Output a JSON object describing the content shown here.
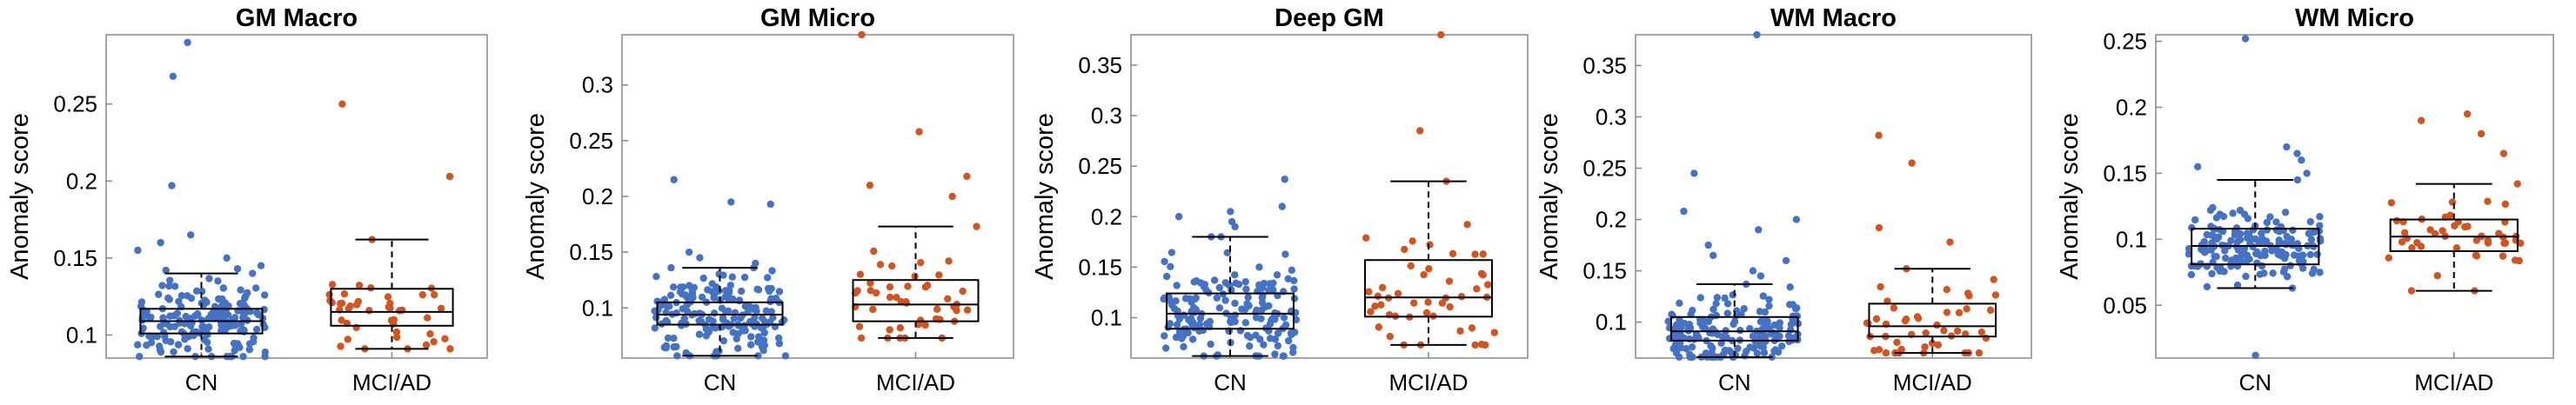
{
  "colors": {
    "cn": "#4472C4",
    "mci": "#D2541E",
    "axis": "#888888",
    "box": "#000000"
  },
  "chart_data": [
    {
      "type": "box",
      "title": "GM Macro",
      "ylabel": "Anomaly score",
      "categories": [
        "CN",
        "MCI/AD"
      ],
      "ylim": [
        0.085,
        0.295
      ],
      "yticks": [
        0.1,
        0.15,
        0.2,
        0.25
      ],
      "ytick_labels": [
        "0.1",
        "0.15",
        "0.2",
        "0.25"
      ],
      "boxes": [
        {
          "q1": 0.101,
          "median": 0.109,
          "q3": 0.117,
          "whisker_low": 0.086,
          "whisker_high": 0.14,
          "n": 170,
          "spread": 0.016,
          "outliers": [
            0.29,
            0.268,
            0.197,
            0.165,
            0.16,
            0.155,
            0.15,
            0.145,
            0.143,
            0.142
          ]
        },
        {
          "q1": 0.106,
          "median": 0.115,
          "q3": 0.13,
          "whisker_low": 0.091,
          "whisker_high": 0.162,
          "n": 42,
          "spread": 0.017,
          "outliers": [
            0.25,
            0.203
          ]
        }
      ]
    },
    {
      "type": "box",
      "title": "GM Micro",
      "ylabel": "Anomaly score",
      "categories": [
        "CN",
        "MCI/AD"
      ],
      "ylim": [
        0.055,
        0.345
      ],
      "yticks": [
        0.1,
        0.15,
        0.2,
        0.25,
        0.3
      ],
      "ytick_labels": [
        "0.1",
        "0.15",
        "0.2",
        "0.25",
        "0.3"
      ],
      "boxes": [
        {
          "q1": 0.085,
          "median": 0.094,
          "q3": 0.105,
          "whisker_low": 0.057,
          "whisker_high": 0.136,
          "n": 170,
          "spread": 0.022,
          "outliers": [
            0.215,
            0.195,
            0.193,
            0.15,
            0.145,
            0.14
          ]
        },
        {
          "q1": 0.088,
          "median": 0.103,
          "q3": 0.125,
          "whisker_low": 0.073,
          "whisker_high": 0.173,
          "n": 45,
          "spread": 0.028,
          "outliers": [
            0.345,
            0.258,
            0.218,
            0.21,
            0.2
          ]
        }
      ]
    },
    {
      "type": "box",
      "title": "Deep GM",
      "ylabel": "Anomaly score",
      "categories": [
        "CN",
        "MCI/AD"
      ],
      "ylim": [
        0.06,
        0.38
      ],
      "yticks": [
        0.1,
        0.15,
        0.2,
        0.25,
        0.3,
        0.35
      ],
      "ytick_labels": [
        "0.1",
        "0.15",
        "0.2",
        "0.25",
        "0.3",
        "0.35"
      ],
      "boxes": [
        {
          "q1": 0.089,
          "median": 0.104,
          "q3": 0.124,
          "whisker_low": 0.062,
          "whisker_high": 0.18,
          "n": 170,
          "spread": 0.03,
          "outliers": [
            0.237,
            0.21,
            0.205,
            0.2,
            0.195,
            0.19
          ]
        },
        {
          "q1": 0.101,
          "median": 0.12,
          "q3": 0.157,
          "whisker_low": 0.073,
          "whisker_high": 0.235,
          "n": 45,
          "spread": 0.038,
          "outliers": [
            0.38,
            0.285
          ]
        }
      ]
    },
    {
      "type": "box",
      "title": "WM Macro",
      "ylabel": "Anomaly score",
      "categories": [
        "CN",
        "MCI/AD"
      ],
      "ylim": [
        0.065,
        0.38
      ],
      "yticks": [
        0.1,
        0.15,
        0.2,
        0.25,
        0.3,
        0.35
      ],
      "ytick_labels": [
        "0.1",
        "0.15",
        "0.2",
        "0.25",
        "0.3",
        "0.35"
      ],
      "boxes": [
        {
          "q1": 0.082,
          "median": 0.091,
          "q3": 0.105,
          "whisker_low": 0.066,
          "whisker_high": 0.137,
          "n": 170,
          "spread": 0.022,
          "outliers": [
            0.38,
            0.245,
            0.208,
            0.2,
            0.19,
            0.175,
            0.165,
            0.16,
            0.15,
            0.145
          ]
        },
        {
          "q1": 0.086,
          "median": 0.096,
          "q3": 0.118,
          "whisker_low": 0.07,
          "whisker_high": 0.152,
          "n": 45,
          "spread": 0.025,
          "outliers": [
            0.282,
            0.255,
            0.192,
            0.178
          ]
        }
      ]
    },
    {
      "type": "box",
      "title": "WM Micro",
      "ylabel": "Anomaly score",
      "categories": [
        "CN",
        "MCI/AD"
      ],
      "ylim": [
        0.01,
        0.255
      ],
      "yticks": [
        0.05,
        0.1,
        0.15,
        0.2,
        0.25
      ],
      "ytick_labels": [
        "0.05",
        "0.1",
        "0.15",
        "0.2",
        "0.25"
      ],
      "boxes": [
        {
          "q1": 0.081,
          "median": 0.095,
          "q3": 0.108,
          "whisker_low": 0.063,
          "whisker_high": 0.145,
          "n": 170,
          "spread": 0.018,
          "outliers": [
            0.252,
            0.012,
            0.17,
            0.165,
            0.16,
            0.155,
            0.15
          ]
        },
        {
          "q1": 0.091,
          "median": 0.102,
          "q3": 0.115,
          "whisker_low": 0.061,
          "whisker_high": 0.142,
          "n": 45,
          "spread": 0.019,
          "outliers": [
            0.195,
            0.19,
            0.18,
            0.165
          ]
        }
      ]
    }
  ]
}
